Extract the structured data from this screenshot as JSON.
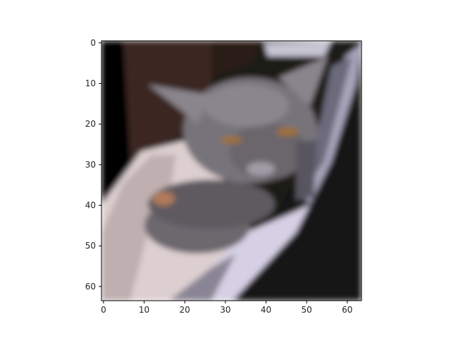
{
  "chart_data": {
    "type": "heatmap",
    "title": "",
    "xlabel": "",
    "ylabel": "",
    "image_size": [
      64,
      64
    ],
    "xlim": [
      -0.5,
      63.5
    ],
    "ylim": [
      63.5,
      -0.5
    ],
    "grid": false,
    "legend": "none",
    "x_ticks": [
      0,
      10,
      20,
      30,
      40,
      50,
      60
    ],
    "y_ticks": [
      0,
      10,
      20,
      30,
      40,
      50,
      60
    ],
    "content": "pixelated photo of a grey cat lying in a white cushioned basket"
  }
}
